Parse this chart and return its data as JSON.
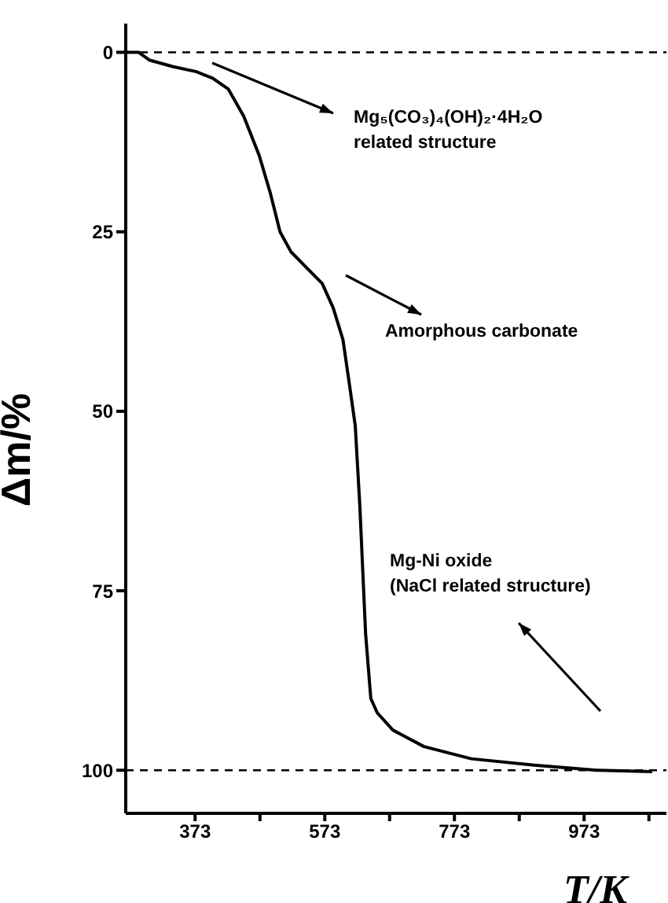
{
  "chart_data": {
    "type": "line",
    "xlabel": "T/K",
    "ylabel": "Δm/%",
    "x": [
      266,
      286,
      303,
      339,
      375,
      400,
      424,
      448,
      472,
      489,
      504,
      521,
      545,
      569,
      586,
      601,
      610,
      620,
      627,
      636,
      644,
      654,
      678,
      726,
      799,
      896,
      993,
      1078
    ],
    "series": [
      {
        "color": "#000000",
        "values": [
          0,
          0,
          1.1,
          2,
          2.7,
          3.6,
          5.1,
          8.9,
          14.4,
          19.6,
          25,
          27.8,
          30,
          32.2,
          35.6,
          40,
          45.6,
          52,
          63,
          81,
          90,
          92,
          94.4,
          96.7,
          98.4,
          99.3,
          100,
          100.2
        ]
      }
    ],
    "xlim": [
      266,
      1100
    ],
    "ylim": [
      106,
      -4
    ],
    "xticks": [
      373,
      {
        "value": 473,
        "label": null
      },
      573,
      {
        "value": 673,
        "label": null
      },
      773,
      {
        "value": 873,
        "label": null
      },
      973,
      {
        "value": 1073,
        "label": null
      }
    ],
    "yticks": [
      0,
      25,
      50,
      75,
      100
    ],
    "ref_lines": [
      {
        "axis": "y",
        "value": 0,
        "line_style": "dashed"
      },
      {
        "axis": "y",
        "value": 100,
        "line_style": "dashed"
      }
    ],
    "annotations": [
      "Mg₅(CO₃)₄(OH)₂·4H₂O\nrelated structure",
      "Amorphous carbonate",
      "Mg-Ni oxide\n(NaCl related structure)"
    ],
    "marker": "none",
    "line_style": "solid",
    "grid": false,
    "legend": false
  }
}
